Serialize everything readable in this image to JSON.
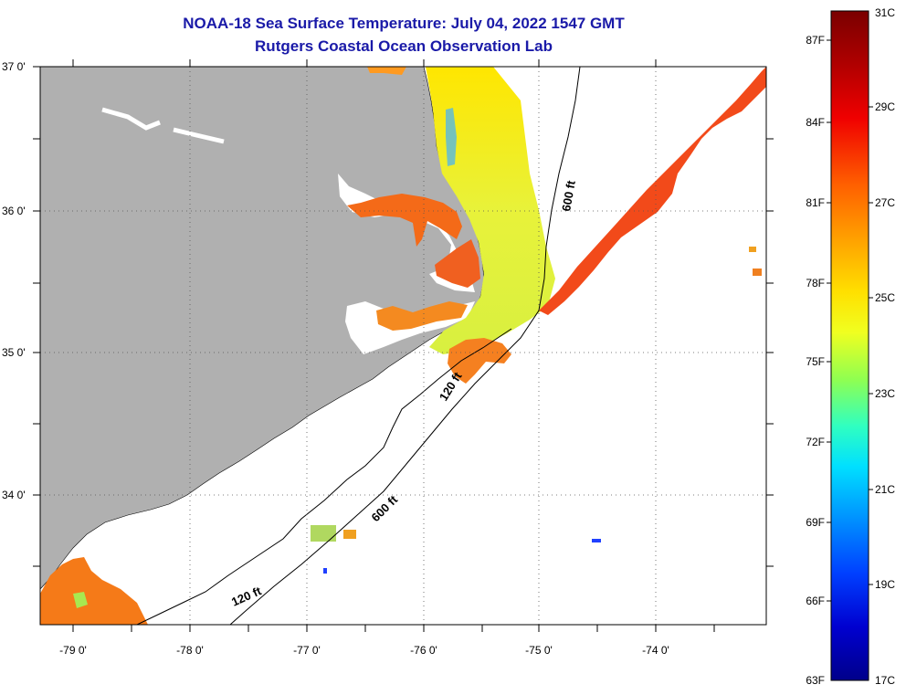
{
  "header": {
    "title_line1": "NOAA-18 Sea Surface Temperature:  July 04, 2022 1547 GMT",
    "title_line2": "Rutgers Coastal Ocean Observation Lab"
  },
  "map": {
    "lat_labels": [
      "37 0'",
      "36 0'",
      "35 0'",
      "34 0'"
    ],
    "lon_labels": [
      "-79 0'",
      "-78 0'",
      "-77 0'",
      "-76 0'",
      "-75 0'",
      "-74 0'"
    ],
    "contours": {
      "label_600_north": "600 ft",
      "label_120_mid": "120 ft",
      "label_600_south": "600 ft",
      "label_120_south": "120 ft"
    },
    "colors": {
      "land": "#b0b0b0",
      "no_data": "#ffffff",
      "grid": "#555555"
    }
  },
  "colorbar": {
    "celsius_labels": [
      "31C",
      "29C",
      "27C",
      "25C",
      "23C",
      "21C",
      "19C",
      "17C"
    ],
    "fahrenheit_labels": [
      "87F",
      "84F",
      "81F",
      "78F",
      "75F",
      "72F",
      "69F",
      "66F",
      "63F"
    ],
    "gradient_colors": [
      "#7a0000",
      "#d40000",
      "#ff3a00",
      "#ff8000",
      "#ffc000",
      "#ffff00",
      "#a0ff40",
      "#40ffc0",
      "#00e0ff",
      "#0090ff",
      "#0030ff",
      "#0000c8",
      "#00008a"
    ]
  }
}
